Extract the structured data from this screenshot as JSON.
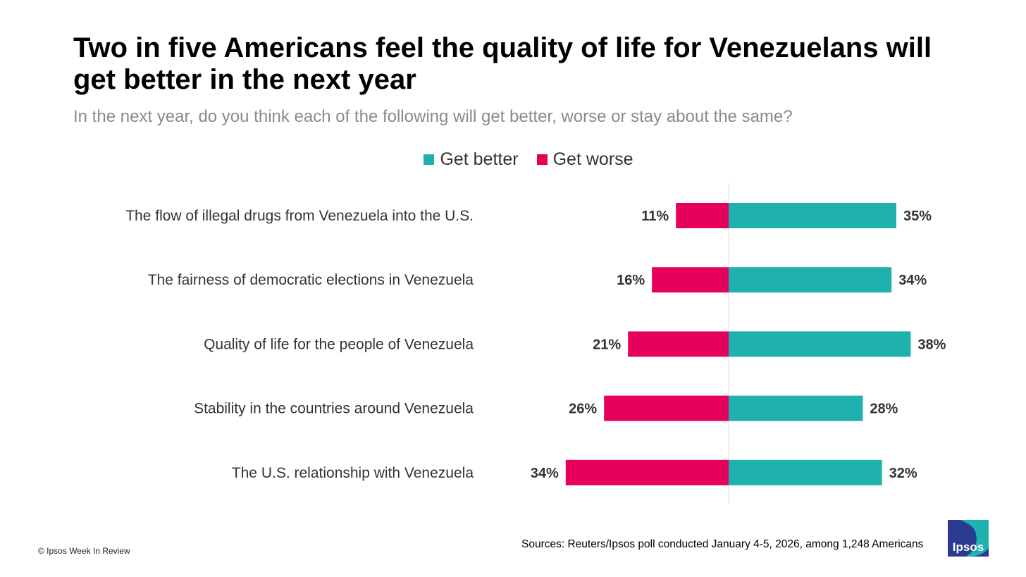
{
  "header": {
    "title": "Two in five Americans feel the quality of life for Venezuelans will get better in the next year",
    "subtitle": "In the next year, do you think each of the following will get better, worse or stay about the same?"
  },
  "legend": {
    "better": "Get better",
    "worse": "Get worse"
  },
  "colors": {
    "better": "#1FB1AE",
    "worse": "#E6005C",
    "axis": "#d9d9d9"
  },
  "chart_data": {
    "type": "bar",
    "orientation": "horizontal-diverging",
    "categories": [
      "The flow of illegal drugs from Venezuela into the U.S.",
      "The fairness of democratic elections in Venezuela",
      "Quality of life for the people of Venezuela",
      "Stability in the countries around Venezuela",
      "The U.S. relationship with Venezuela"
    ],
    "series": [
      {
        "name": "Get better",
        "values": [
          35,
          34,
          38,
          28,
          32
        ]
      },
      {
        "name": "Get worse",
        "values": [
          11,
          16,
          21,
          26,
          34
        ]
      }
    ],
    "value_suffix": "%",
    "legend_position": "top-center",
    "grid": false
  },
  "footer": {
    "copyright": "© Ipsos Week In Review",
    "sources": "Sources: Reuters/Ipsos poll conducted January 4-5, 2026, among 1,248 Americans",
    "logo_text": "Ipsos"
  }
}
